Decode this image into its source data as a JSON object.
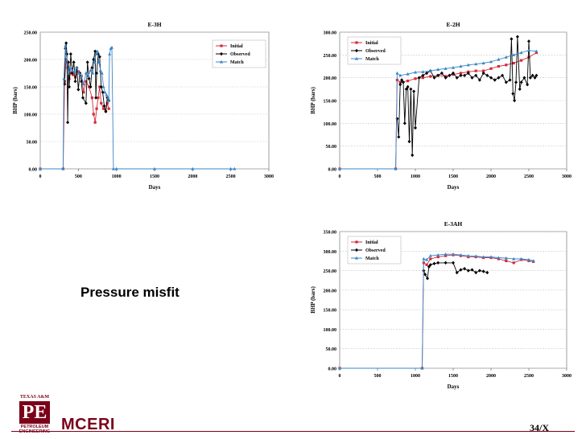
{
  "slide": {
    "caption": "Pressure misfit",
    "logo_top": "TEXAS A&M",
    "logo_mark": "PE",
    "logo_line1": "PETROLEUM",
    "logo_line2": "ENGINEERING",
    "org": "MCERI",
    "page": "34/X"
  },
  "colors": {
    "initial": "#d42a3a",
    "observed": "#000000",
    "match": "#3a86c8",
    "brand": "#7a0019"
  },
  "chart_data": [
    {
      "type": "line",
      "title": "E-3H",
      "xlabel": "Days",
      "ylabel": "BHP (bars)",
      "xlim": [
        0,
        3000
      ],
      "ylim": [
        0,
        250
      ],
      "xticks": [
        0,
        500,
        1000,
        1500,
        2000,
        2500,
        3000
      ],
      "xtick_labels": [
        "0",
        "500",
        "1000",
        "1500",
        "2000",
        "2500",
        "3000"
      ],
      "yticks": [
        0,
        50,
        100,
        150,
        200,
        250
      ],
      "ytick_labels": [
        "0.00",
        "50.00",
        "100.00",
        "150.00",
        "200.00",
        "250.00"
      ],
      "grid": true,
      "legend": "top-right",
      "series": [
        {
          "name": "Initial",
          "color": "#d42a3a",
          "marker": "square",
          "x": [
            0,
            300,
            320,
            340,
            360,
            380,
            400,
            430,
            460,
            500,
            540,
            570,
            600,
            640,
            680,
            700,
            720,
            740,
            760,
            780,
            800,
            830,
            860,
            880,
            900
          ],
          "y": [
            0,
            0,
            160,
            200,
            185,
            165,
            175,
            172,
            168,
            178,
            170,
            140,
            160,
            150,
            130,
            100,
            85,
            110,
            130,
            150,
            120,
            110,
            105,
            120,
            110
          ]
        },
        {
          "name": "Observed",
          "color": "#000000",
          "marker": "diamond",
          "x": [
            320,
            330,
            340,
            350,
            360,
            370,
            380,
            400,
            420,
            440,
            460,
            480,
            500,
            520,
            540,
            560,
            600,
            620,
            640,
            660,
            680,
            700,
            720,
            730,
            740,
            760,
            780,
            800,
            820,
            840,
            860,
            880,
            900
          ],
          "y": [
            155,
            220,
            230,
            210,
            85,
            195,
            150,
            210,
            175,
            195,
            160,
            185,
            145,
            175,
            160,
            130,
            120,
            195,
            165,
            150,
            185,
            200,
            215,
            130,
            175,
            210,
            205,
            150,
            140,
            115,
            105,
            130,
            125
          ]
        },
        {
          "name": "Match",
          "color": "#3a86c8",
          "marker": "triangle",
          "x": [
            0,
            300,
            310,
            330,
            350,
            370,
            390,
            420,
            450,
            480,
            510,
            540,
            570,
            600,
            630,
            660,
            690,
            710,
            730,
            750,
            770,
            790,
            810,
            830,
            850,
            870,
            890,
            900,
            910,
            925,
            940,
            960,
            1000,
            1500,
            2000,
            2500,
            2550
          ],
          "y": [
            0,
            0,
            165,
            225,
            200,
            175,
            185,
            180,
            178,
            185,
            175,
            170,
            155,
            175,
            170,
            180,
            175,
            195,
            210,
            215,
            195,
            180,
            175,
            150,
            140,
            135,
            130,
            125,
            210,
            220,
            222,
            0,
            0,
            0,
            0,
            0,
            0
          ]
        }
      ]
    },
    {
      "type": "line",
      "title": "E-2H",
      "xlabel": "Days",
      "ylabel": "BHP (bars)",
      "xlim": [
        0,
        3000
      ],
      "ylim": [
        0,
        300
      ],
      "xticks": [
        0,
        500,
        1000,
        1500,
        2000,
        2500,
        3000
      ],
      "xtick_labels": [
        "0",
        "500",
        "1000",
        "1500",
        "2000",
        "2500",
        "3000"
      ],
      "yticks": [
        0,
        50,
        100,
        150,
        200,
        250,
        300
      ],
      "ytick_labels": [
        "0.00",
        "50.00",
        "100.00",
        "150.00",
        "200.00",
        "250.00",
        "300.00"
      ],
      "grid": true,
      "legend": "top-left",
      "series": [
        {
          "name": "Initial",
          "color": "#d42a3a",
          "marker": "square",
          "x": [
            0,
            740,
            760,
            800,
            900,
            1000,
            1100,
            1200,
            1300,
            1400,
            1500,
            1600,
            1700,
            1800,
            1900,
            2000,
            2100,
            2200,
            2300,
            2400,
            2500,
            2600
          ],
          "y": [
            0,
            0,
            195,
            190,
            193,
            198,
            200,
            203,
            205,
            203,
            207,
            210,
            213,
            215,
            215,
            220,
            225,
            228,
            232,
            238,
            245,
            255
          ]
        },
        {
          "name": "Observed",
          "color": "#000000",
          "marker": "diamond",
          "x": [
            760,
            780,
            800,
            820,
            840,
            860,
            880,
            900,
            920,
            940,
            960,
            980,
            1000,
            1050,
            1100,
            1150,
            1200,
            1250,
            1300,
            1350,
            1400,
            1450,
            1500,
            1550,
            1600,
            1650,
            1700,
            1750,
            1800,
            1850,
            1900,
            1950,
            2000,
            2050,
            2100,
            2150,
            2200,
            2250,
            2270,
            2290,
            2310,
            2330,
            2350,
            2380,
            2400,
            2440,
            2480,
            2500,
            2520,
            2550,
            2580,
            2600
          ],
          "y": [
            110,
            70,
            185,
            195,
            190,
            100,
            175,
            180,
            60,
            175,
            30,
            170,
            90,
            200,
            205,
            210,
            215,
            200,
            205,
            210,
            200,
            205,
            210,
            200,
            205,
            205,
            210,
            200,
            205,
            195,
            210,
            205,
            200,
            195,
            200,
            205,
            190,
            195,
            285,
            165,
            150,
            190,
            290,
            175,
            190,
            200,
            185,
            280,
            200,
            205,
            200,
            205
          ]
        },
        {
          "name": "Match",
          "color": "#3a86c8",
          "marker": "triangle",
          "x": [
            0,
            740,
            760,
            800,
            900,
            1000,
            1100,
            1200,
            1300,
            1400,
            1500,
            1600,
            1700,
            1800,
            1900,
            2000,
            2100,
            2200,
            2300,
            2400,
            2500,
            2600
          ],
          "y": [
            0,
            0,
            210,
            205,
            208,
            212,
            213,
            215,
            218,
            220,
            222,
            225,
            228,
            230,
            232,
            235,
            240,
            245,
            250,
            255,
            260,
            258
          ]
        }
      ]
    },
    {
      "type": "line",
      "title": "E-3AH",
      "xlabel": "Days",
      "ylabel": "BHP (bars)",
      "xlim": [
        0,
        3000
      ],
      "ylim": [
        0,
        350
      ],
      "xticks": [
        0,
        500,
        1000,
        1500,
        2000,
        2500,
        3000
      ],
      "xtick_labels": [
        "0",
        "500",
        "1000",
        "1500",
        "2000",
        "2500",
        "3000"
      ],
      "yticks": [
        0,
        50,
        100,
        150,
        200,
        250,
        300,
        350
      ],
      "ytick_labels": [
        "0.00",
        "50.00",
        "100.00",
        "150.00",
        "200.00",
        "250.00",
        "300.00",
        "350.00"
      ],
      "grid": true,
      "legend": "top-left",
      "series": [
        {
          "name": "Initial",
          "color": "#d42a3a",
          "marker": "square",
          "x": [
            0,
            1090,
            1110,
            1150,
            1200,
            1300,
            1400,
            1500,
            1600,
            1700,
            1800,
            1900,
            2000,
            2100,
            2200,
            2300,
            2400,
            2500,
            2560
          ],
          "y": [
            0,
            0,
            270,
            265,
            280,
            285,
            288,
            290,
            288,
            285,
            285,
            283,
            283,
            280,
            275,
            270,
            278,
            275,
            273
          ]
        },
        {
          "name": "Observed",
          "color": "#000000",
          "marker": "diamond",
          "x": [
            1110,
            1130,
            1160,
            1180,
            1200,
            1250,
            1300,
            1400,
            1500,
            1550,
            1600,
            1650,
            1700,
            1750,
            1800,
            1850,
            1900,
            1950
          ],
          "y": [
            250,
            240,
            230,
            260,
            265,
            268,
            270,
            270,
            270,
            245,
            252,
            255,
            250,
            252,
            245,
            250,
            248,
            245
          ]
        },
        {
          "name": "Match",
          "color": "#3a86c8",
          "marker": "triangle",
          "x": [
            0,
            1090,
            1110,
            1150,
            1200,
            1300,
            1400,
            1500,
            1600,
            1700,
            1800,
            1900,
            2000,
            2100,
            2200,
            2300,
            2400,
            2500,
            2560
          ],
          "y": [
            0,
            0,
            280,
            278,
            288,
            290,
            292,
            292,
            290,
            288,
            287,
            285,
            285,
            283,
            282,
            280,
            280,
            278,
            275
          ]
        }
      ]
    }
  ]
}
